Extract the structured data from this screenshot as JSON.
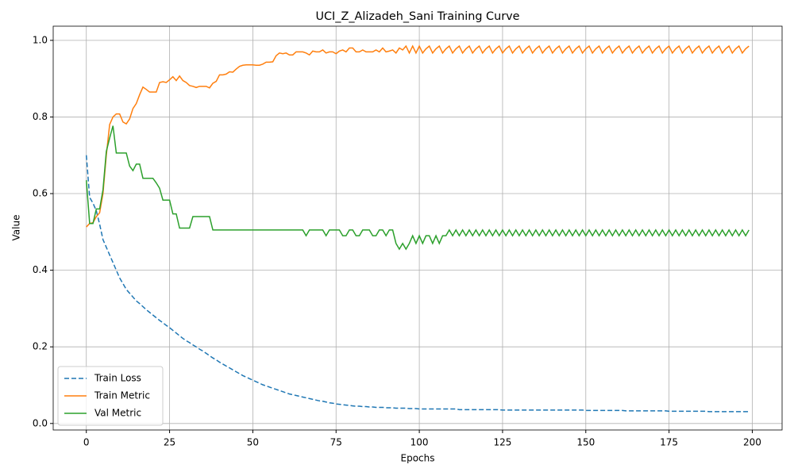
{
  "chart_data": {
    "type": "line",
    "title": "UCI_Z_Alizadeh_Sani Training Curve",
    "x_label": "Epochs",
    "y_label": "Value",
    "xlim": [
      -9.95,
      208.95
    ],
    "ylim": [
      -0.017,
      1.037
    ],
    "xticks": [
      0,
      25,
      50,
      75,
      100,
      125,
      150,
      175,
      200
    ],
    "yticks": [
      {
        "value": 0,
        "label": "0.0"
      },
      0.2,
      0.4,
      0.6,
      0.8,
      {
        "value": 1,
        "label": "1.0"
      }
    ],
    "grid": true,
    "legend_position": "lower-left",
    "x": [
      0,
      1,
      2,
      3,
      4,
      5,
      6,
      7,
      8,
      9,
      10,
      11,
      12,
      13,
      14,
      15,
      16,
      17,
      18,
      19,
      20,
      21,
      22,
      23,
      24,
      25,
      26,
      27,
      28,
      29,
      30,
      31,
      32,
      33,
      34,
      35,
      36,
      37,
      38,
      39,
      40,
      41,
      42,
      43,
      44,
      45,
      46,
      47,
      48,
      49,
      50,
      51,
      52,
      53,
      54,
      55,
      56,
      57,
      58,
      59,
      60,
      61,
      62,
      63,
      64,
      65,
      66,
      67,
      68,
      69,
      70,
      71,
      72,
      73,
      74,
      75,
      76,
      77,
      78,
      79,
      80,
      81,
      82,
      83,
      84,
      85,
      86,
      87,
      88,
      89,
      90,
      91,
      92,
      93,
      94,
      95,
      96,
      97,
      98,
      99,
      100,
      101,
      102,
      103,
      104,
      105,
      106,
      107,
      108,
      109,
      110,
      111,
      112,
      113,
      114,
      115,
      116,
      117,
      118,
      119,
      120,
      121,
      122,
      123,
      124,
      125,
      126,
      127,
      128,
      129,
      130,
      131,
      132,
      133,
      134,
      135,
      136,
      137,
      138,
      139,
      140,
      141,
      142,
      143,
      144,
      145,
      146,
      147,
      148,
      149,
      150,
      151,
      152,
      153,
      154,
      155,
      156,
      157,
      158,
      159,
      160,
      161,
      162,
      163,
      164,
      165,
      166,
      167,
      168,
      169,
      170,
      171,
      172,
      173,
      174,
      175,
      176,
      177,
      178,
      179,
      180,
      181,
      182,
      183,
      184,
      185,
      186,
      187,
      188,
      189,
      190,
      191,
      192,
      193,
      194,
      195,
      196,
      197,
      198,
      199
    ],
    "series": [
      {
        "name": "Train Loss",
        "color": "#1f77b4",
        "linestyle": "dashed",
        "values": [
          0.7,
          0.59,
          0.575,
          0.555,
          0.52,
          0.48,
          0.46,
          0.44,
          0.42,
          0.4,
          0.38,
          0.365,
          0.35,
          0.34,
          0.33,
          0.32,
          0.313,
          0.305,
          0.297,
          0.29,
          0.283,
          0.276,
          0.269,
          0.263,
          0.256,
          0.25,
          0.243,
          0.236,
          0.229,
          0.222,
          0.216,
          0.211,
          0.205,
          0.2,
          0.194,
          0.189,
          0.183,
          0.177,
          0.171,
          0.166,
          0.16,
          0.155,
          0.15,
          0.145,
          0.14,
          0.135,
          0.13,
          0.125,
          0.121,
          0.117,
          0.113,
          0.109,
          0.105,
          0.101,
          0.098,
          0.095,
          0.092,
          0.089,
          0.086,
          0.083,
          0.08,
          0.077,
          0.075,
          0.073,
          0.071,
          0.069,
          0.067,
          0.065,
          0.063,
          0.061,
          0.059,
          0.058,
          0.056,
          0.054,
          0.053,
          0.051,
          0.05,
          0.049,
          0.048,
          0.047,
          0.046,
          0.045,
          0.045,
          0.044,
          0.044,
          0.043,
          0.043,
          0.042,
          0.042,
          0.042,
          0.041,
          0.041,
          0.041,
          0.04,
          0.04,
          0.04,
          0.04,
          0.039,
          0.039,
          0.039,
          0.038,
          0.038,
          0.038,
          0.038,
          0.038,
          0.038,
          0.038,
          0.038,
          0.038,
          0.038,
          0.038,
          0.038,
          0.036,
          0.036,
          0.036,
          0.036,
          0.036,
          0.036,
          0.036,
          0.036,
          0.036,
          0.036,
          0.036,
          0.036,
          0.036,
          0.035,
          0.035,
          0.035,
          0.035,
          0.035,
          0.035,
          0.035,
          0.035,
          0.035,
          0.035,
          0.035,
          0.035,
          0.035,
          0.035,
          0.035,
          0.035,
          0.035,
          0.035,
          0.035,
          0.035,
          0.035,
          0.035,
          0.035,
          0.035,
          0.035,
          0.034,
          0.034,
          0.034,
          0.034,
          0.034,
          0.034,
          0.034,
          0.034,
          0.034,
          0.034,
          0.034,
          0.034,
          0.033,
          0.033,
          0.033,
          0.033,
          0.033,
          0.033,
          0.033,
          0.033,
          0.033,
          0.033,
          0.033,
          0.033,
          0.033,
          0.032,
          0.032,
          0.032,
          0.032,
          0.032,
          0.032,
          0.032,
          0.032,
          0.032,
          0.032,
          0.032,
          0.032,
          0.031,
          0.031,
          0.031,
          0.031,
          0.031,
          0.031,
          0.031,
          0.031,
          0.031,
          0.031,
          0.031,
          0.031,
          0.031
        ]
      },
      {
        "name": "Train Metric",
        "color": "#ff7f0e",
        "linestyle": "solid",
        "values": [
          0.513,
          0.522,
          0.524,
          0.54,
          0.55,
          0.6,
          0.7,
          0.78,
          0.8,
          0.808,
          0.808,
          0.787,
          0.782,
          0.795,
          0.822,
          0.835,
          0.858,
          0.878,
          0.872,
          0.865,
          0.865,
          0.865,
          0.89,
          0.892,
          0.89,
          0.897,
          0.905,
          0.895,
          0.907,
          0.895,
          0.89,
          0.882,
          0.88,
          0.877,
          0.88,
          0.88,
          0.88,
          0.876,
          0.888,
          0.893,
          0.91,
          0.91,
          0.912,
          0.918,
          0.917,
          0.925,
          0.932,
          0.935,
          0.936,
          0.936,
          0.936,
          0.935,
          0.935,
          0.938,
          0.943,
          0.943,
          0.944,
          0.96,
          0.967,
          0.965,
          0.967,
          0.962,
          0.962,
          0.97,
          0.97,
          0.97,
          0.967,
          0.962,
          0.972,
          0.97,
          0.97,
          0.975,
          0.967,
          0.97,
          0.97,
          0.965,
          0.972,
          0.975,
          0.97,
          0.98,
          0.98,
          0.97,
          0.97,
          0.975,
          0.97,
          0.97,
          0.97,
          0.975,
          0.97,
          0.98,
          0.97,
          0.972,
          0.975,
          0.967,
          0.98,
          0.975,
          0.985,
          0.967,
          0.985,
          0.967,
          0.985,
          0.967,
          0.978,
          0.985,
          0.967,
          0.978,
          0.985,
          0.967,
          0.978,
          0.985,
          0.967,
          0.978,
          0.985,
          0.967,
          0.978,
          0.985,
          0.967,
          0.978,
          0.985,
          0.967,
          0.978,
          0.985,
          0.967,
          0.978,
          0.985,
          0.967,
          0.978,
          0.985,
          0.967,
          0.978,
          0.985,
          0.967,
          0.978,
          0.985,
          0.967,
          0.978,
          0.985,
          0.967,
          0.978,
          0.985,
          0.967,
          0.978,
          0.985,
          0.967,
          0.978,
          0.985,
          0.967,
          0.978,
          0.985,
          0.967,
          0.978,
          0.985,
          0.967,
          0.978,
          0.985,
          0.967,
          0.978,
          0.985,
          0.967,
          0.978,
          0.985,
          0.967,
          0.978,
          0.985,
          0.967,
          0.978,
          0.985,
          0.967,
          0.978,
          0.985,
          0.967,
          0.978,
          0.985,
          0.967,
          0.978,
          0.985,
          0.967,
          0.978,
          0.985,
          0.967,
          0.978,
          0.985,
          0.967,
          0.978,
          0.985,
          0.967,
          0.978,
          0.985,
          0.967,
          0.978,
          0.985,
          0.967,
          0.978,
          0.985,
          0.967,
          0.978,
          0.985,
          0.967,
          0.978,
          0.985
        ]
      },
      {
        "name": "Val Metric",
        "color": "#2ca02c",
        "linestyle": "solid",
        "values": [
          0.635,
          0.522,
          0.522,
          0.56,
          0.56,
          0.61,
          0.71,
          0.745,
          0.777,
          0.706,
          0.706,
          0.706,
          0.706,
          0.672,
          0.66,
          0.677,
          0.677,
          0.64,
          0.64,
          0.64,
          0.64,
          0.628,
          0.614,
          0.583,
          0.583,
          0.583,
          0.547,
          0.547,
          0.51,
          0.51,
          0.51,
          0.51,
          0.54,
          0.54,
          0.54,
          0.54,
          0.54,
          0.54,
          0.505,
          0.505,
          0.505,
          0.505,
          0.505,
          0.505,
          0.505,
          0.505,
          0.505,
          0.505,
          0.505,
          0.505,
          0.505,
          0.505,
          0.505,
          0.505,
          0.505,
          0.505,
          0.505,
          0.505,
          0.505,
          0.505,
          0.505,
          0.505,
          0.505,
          0.505,
          0.505,
          0.505,
          0.49,
          0.505,
          0.505,
          0.505,
          0.505,
          0.505,
          0.49,
          0.505,
          0.505,
          0.505,
          0.505,
          0.49,
          0.49,
          0.505,
          0.505,
          0.49,
          0.49,
          0.505,
          0.505,
          0.505,
          0.49,
          0.49,
          0.505,
          0.505,
          0.49,
          0.505,
          0.505,
          0.47,
          0.455,
          0.47,
          0.455,
          0.47,
          0.49,
          0.47,
          0.49,
          0.47,
          0.49,
          0.49,
          0.47,
          0.49,
          0.47,
          0.49,
          0.49,
          0.505,
          0.49,
          0.505,
          0.49,
          0.505,
          0.49,
          0.505,
          0.49,
          0.505,
          0.49,
          0.505,
          0.49,
          0.505,
          0.49,
          0.505,
          0.49,
          0.505,
          0.49,
          0.505,
          0.49,
          0.505,
          0.49,
          0.505,
          0.49,
          0.505,
          0.49,
          0.505,
          0.49,
          0.505,
          0.49,
          0.505,
          0.49,
          0.505,
          0.49,
          0.505,
          0.49,
          0.505,
          0.49,
          0.505,
          0.49,
          0.505,
          0.49,
          0.505,
          0.49,
          0.505,
          0.49,
          0.505,
          0.49,
          0.505,
          0.49,
          0.505,
          0.49,
          0.505,
          0.49,
          0.505,
          0.49,
          0.505,
          0.49,
          0.505,
          0.49,
          0.505,
          0.49,
          0.505,
          0.49,
          0.505,
          0.49,
          0.505,
          0.49,
          0.505,
          0.49,
          0.505,
          0.49,
          0.505,
          0.49,
          0.505,
          0.49,
          0.505,
          0.49,
          0.505,
          0.49,
          0.505,
          0.49,
          0.505,
          0.49,
          0.505,
          0.49,
          0.505,
          0.49,
          0.505,
          0.49,
          0.505
        ]
      }
    ]
  }
}
